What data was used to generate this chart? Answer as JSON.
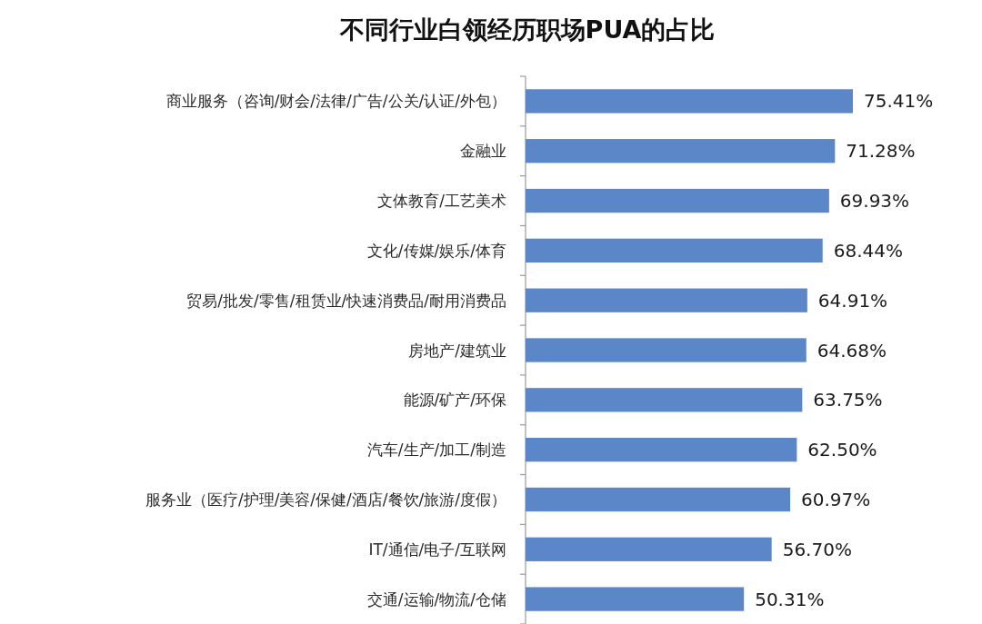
{
  "chart_data": {
    "type": "bar",
    "orientation": "horizontal",
    "title": "不同行业白领经历职场PUA的占比",
    "categories": [
      "商业服务（咨询/财会/法律/广告/公关/认证/外包）",
      "金融业",
      "文体教育/工艺美术",
      "文化/传媒/娱乐/体育",
      "贸易/批发/零售/租赁业/快速消费品/耐用消费品",
      "房地产/建筑业",
      "能源/矿产/环保",
      "汽车/生产/加工/制造",
      "服务业（医疗/护理/美容/保健/酒店/餐饮/旅游/度假）",
      "IT/通信/电子/互联网",
      "交通/运输/物流/仓储"
    ],
    "values": [
      75.41,
      71.28,
      69.93,
      68.44,
      64.91,
      64.68,
      63.75,
      62.5,
      60.97,
      56.7,
      50.31
    ],
    "value_labels": [
      "75.41%",
      "71.28%",
      "69.93%",
      "68.44%",
      "64.91%",
      "64.68%",
      "63.75%",
      "62.50%",
      "60.97%",
      "56.70%",
      "50.31%"
    ],
    "color": "#5b87c8"
  }
}
